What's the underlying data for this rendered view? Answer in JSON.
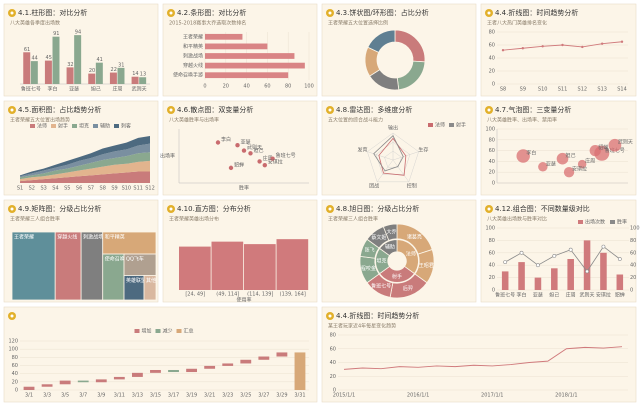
{
  "chart_data": [
    {
      "type": "bar",
      "title": "4.1.柱形图：对比分析",
      "subtitle": "八大英雄各季度出场数",
      "categories": [
        "鲁班七号",
        "李白",
        "亚瑟",
        "妲己",
        "庄周",
        "武则天"
      ],
      "series": [
        {
          "color": "#c97b7b",
          "values": [
            61,
            45,
            32,
            20,
            22,
            14
          ]
        },
        {
          "color": "#8aa88f",
          "values": [
            44,
            91,
            94,
            41,
            31,
            13
          ]
        }
      ],
      "ylim": [
        0,
        100
      ]
    },
    {
      "type": "barh",
      "title": "4.2.条形图：对比分析",
      "subtitle": "2015-2018赛事大乔选取次数排名",
      "categories": [
        "王者荣耀",
        "和平精英",
        "刺激战场",
        "穿越火线",
        "使命召唤手游"
      ],
      "values": [
        36,
        60,
        86,
        96,
        80
      ],
      "color": "#d98485",
      "xlim": [
        0,
        100
      ],
      "xticks": [
        0,
        20,
        40,
        60,
        80,
        100
      ]
    },
    {
      "type": "donut",
      "title": "4.3.饼状图/环形图：占比分析",
      "subtitle": "王者荣耀五大位置选择比例",
      "categories": [
        "法师",
        "射手",
        "坦克",
        "辅助",
        "刺客"
      ],
      "values": [
        26,
        22,
        18,
        16,
        18
      ],
      "colors": [
        "#c97b7b",
        "#8aa88f",
        "#7f7f7f",
        "#d7a878",
        "#5f7f92"
      ]
    },
    {
      "type": "line",
      "title": "4.4.折线图：时间趋势分析",
      "subtitle": "王者八大热门英雄排名变化",
      "categories": [
        "S8",
        "S9",
        "S10",
        "S11",
        "S12",
        "S13",
        "S14"
      ],
      "values": [
        52,
        55,
        58,
        60,
        57,
        62,
        65
      ],
      "color": "#d07a7c",
      "ylim": [
        0,
        80
      ],
      "yticks": [
        0,
        20,
        40,
        60,
        80
      ],
      "grid": true
    },
    {
      "type": "area",
      "title": "4.5.面积图：占比趋势分析",
      "subtitle": "王者荣耀五大位置出场趋势",
      "categories": [
        "S1",
        "S2",
        "S3",
        "S4",
        "S5",
        "S6",
        "S7",
        "S8",
        "S9",
        "S10",
        "S11",
        "S12"
      ],
      "series": [
        {
          "name": "法师",
          "color": "#c97b7b",
          "values": [
            2,
            3,
            4,
            5,
            6,
            7,
            8,
            9,
            10,
            11,
            12,
            12
          ]
        },
        {
          "name": "射手",
          "color": "#e2b48e",
          "values": [
            2,
            3,
            3,
            4,
            5,
            6,
            7,
            8,
            9,
            9,
            10,
            11
          ]
        },
        {
          "name": "坦克",
          "color": "#8aa88f",
          "values": [
            2,
            2,
            3,
            4,
            4,
            5,
            6,
            7,
            7,
            8,
            9,
            9
          ]
        },
        {
          "name": "辅助",
          "color": "#7a8fa0",
          "values": [
            1,
            2,
            3,
            3,
            4,
            5,
            5,
            6,
            7,
            7,
            8,
            9
          ]
        },
        {
          "name": "刺客",
          "color": "#4d6a80",
          "values": [
            1,
            2,
            2,
            3,
            4,
            4,
            5,
            6,
            6,
            7,
            8,
            8
          ]
        }
      ],
      "ylim": [
        0,
        50
      ]
    },
    {
      "type": "scatter",
      "title": "4.6.散点图：双变量分析",
      "subtitle": "八大英雄胜率与出场率",
      "labels": [
        "李白",
        "亚瑟",
        "妲己",
        "庄周",
        "鲁班七号",
        "武则天",
        "安琪拉",
        "貂蝉"
      ],
      "x": [
        30,
        45,
        55,
        62,
        72,
        50,
        66,
        40
      ],
      "y": [
        75,
        70,
        55,
        40,
        45,
        60,
        33,
        28
      ],
      "color": "#c96b6e",
      "xlim": [
        0,
        100
      ],
      "ylim": [
        0,
        100
      ],
      "xlabel": "胜率",
      "ylabel": "出场率"
    },
    {
      "type": "radar",
      "title": "4.8.雷达图：多维度分析",
      "subtitle": "五大位置的综合战斗能力",
      "categories": [
        "输出",
        "生存",
        "控制",
        "团战",
        "发育"
      ],
      "series": [
        {
          "name": "法师",
          "color": "#c96b6e",
          "values": [
            80,
            50,
            70,
            60,
            55
          ]
        },
        {
          "name": "射手",
          "color": "#8a8a8a",
          "values": [
            90,
            40,
            30,
            50,
            75
          ]
        }
      ],
      "rlim": [
        0,
        100
      ]
    },
    {
      "type": "bubble",
      "title": "4.7.气泡图：三变量分析",
      "subtitle": "八大英雄胜率、出场率、禁用率",
      "labels": [
        "李白",
        "亚瑟",
        "妲己",
        "庄周",
        "鲁班七号",
        "武则天",
        "安琪拉",
        "貂蝉"
      ],
      "x": [
        20,
        35,
        50,
        65,
        80,
        90,
        55,
        75
      ],
      "y": [
        50,
        30,
        45,
        35,
        55,
        70,
        20,
        60
      ],
      "size": [
        20,
        10,
        15,
        8,
        25,
        18,
        12,
        14
      ],
      "color": "#d96f72",
      "xlim": [
        0,
        100
      ],
      "ylim": [
        0,
        100
      ],
      "yticks": [
        0,
        20,
        40,
        60,
        80,
        100
      ]
    },
    {
      "type": "treemap",
      "title": "4.9.矩阵图：分级占比分析",
      "subtitle": "王者荣耀三人组合胜率",
      "categories": [
        "王者荣耀",
        "穿越火线",
        "刺激战场",
        "和平精英",
        "使命召唤",
        "QQ飞车",
        "英雄联盟",
        "其他"
      ],
      "values": [
        30,
        18,
        15,
        12,
        10,
        7,
        5,
        3
      ],
      "colors": [
        "#5f8f9a",
        "#c97b7b",
        "#7f7f7f",
        "#d7a878",
        "#8aa88f",
        "#b0a090",
        "#4d6a80",
        "#d9b8a0"
      ]
    },
    {
      "type": "column",
      "title": "4.10.直方图：分布分析",
      "subtitle": "王者荣耀英雄出场分布",
      "categories": [
        "[24, 49]",
        "(49, 114]",
        "(114, 139]",
        "(139, 164]"
      ],
      "values": [
        70,
        78,
        74,
        82
      ],
      "color": "#d07a7c",
      "ylim": [
        0,
        100
      ],
      "xlabel": "使用率"
    },
    {
      "type": "sunburst",
      "title": "4.8.旭日图：分级占比分析",
      "subtitle": "王者荣耀三人组合胜率",
      "inner": {
        "categories": [
          "法师",
          "射手",
          "坦克",
          "辅助"
        ],
        "values": [
          35,
          30,
          20,
          15
        ]
      },
      "outer": {
        "categories": [
          "诸葛亮",
          "王昭君",
          "后羿",
          "鲁班七号",
          "程咬金",
          "张飞",
          "蔡文姬",
          "大乔"
        ],
        "values": [
          20,
          15,
          18,
          12,
          12,
          8,
          9,
          6
        ]
      },
      "colors": [
        "#d7a878",
        "#c97b7b",
        "#8aa88f",
        "#7f7f7f"
      ]
    },
    {
      "type": "combo",
      "title": "4.12.组合图：不同数量级对比",
      "subtitle": "八大英雄出场数与胜率对比",
      "categories": [
        "鲁班七号",
        "李白",
        "亚瑟",
        "妲己",
        "庄周",
        "武则天",
        "安琪拉",
        "貂蝉"
      ],
      "series": [
        {
          "name": "出场次数",
          "color": "#d07a7c",
          "values": [
            30,
            45,
            20,
            35,
            50,
            80,
            60,
            25
          ]
        },
        {
          "name": "胜率",
          "color": "#8a8a8a",
          "axis": "y2",
          "values": [
            45,
            60,
            40,
            55,
            65,
            30,
            70,
            50
          ]
        }
      ],
      "ylim": [
        0,
        100
      ],
      "yticks": [
        0,
        20,
        40,
        60,
        80,
        100
      ],
      "y2lim": [
        0,
        100
      ],
      "y2ticks": [
        0,
        20,
        40,
        60,
        80,
        100
      ]
    },
    {
      "type": "waterfall",
      "categories": [
        "3/1",
        "3/3",
        "3/5",
        "3/7",
        "3/9",
        "3/11",
        "3/13",
        "3/15",
        "3/17",
        "3/19",
        "3/21",
        "3/23",
        "3/25",
        "3/27",
        "3/29",
        "3/31"
      ],
      "values": [
        8,
        6,
        9,
        -4,
        7,
        6,
        10,
        7,
        -5,
        8,
        7,
        6,
        9,
        8,
        10,
        92
      ],
      "legend": [
        {
          "name": "增加",
          "color": "#c97b7b"
        },
        {
          "name": "减少",
          "color": "#8aa88f"
        },
        {
          "name": "汇总",
          "color": "#d7a878"
        }
      ],
      "ylim": [
        0,
        120
      ],
      "yticks": [
        0,
        20,
        40,
        60,
        80,
        100,
        120
      ]
    },
    {
      "type": "line",
      "title": "4.4.折线图：时间趋势分析",
      "subtitle": "某王者玩家近4年每星变化趋势",
      "x": [
        "2015/1/1",
        "2015/4/1",
        "2015/7/1",
        "2015/10/1",
        "2016/1/1",
        "2016/4/1",
        "2016/7/1",
        "2016/10/1",
        "2017/1/1",
        "2017/4/1",
        "2017/7/1",
        "2017/10/1",
        "2018/1/1",
        "2018/4/1",
        "2018/7/1",
        "2018/10/1"
      ],
      "xticks": [
        "2015/1/1",
        "2016/1/1",
        "2017/1/1",
        "2018/1/1"
      ],
      "values": [
        30,
        32,
        31,
        34,
        33,
        35,
        34,
        36,
        35,
        37,
        40,
        42,
        60,
        62,
        61,
        63
      ],
      "color": "#d07a7c",
      "ylim": [
        0,
        80
      ],
      "yticks": [
        0,
        20,
        40,
        60,
        80
      ],
      "grid": true
    }
  ]
}
